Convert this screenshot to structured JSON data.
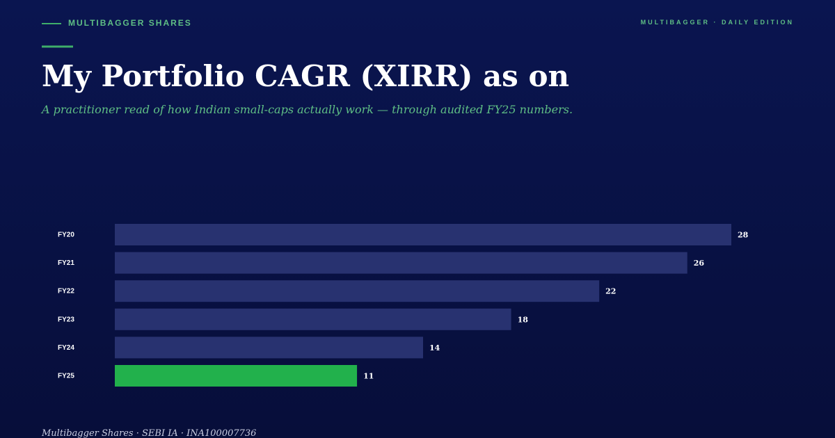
{
  "chart_data": {
    "type": "barh",
    "kicker": "MULTIBAGGER SHARES",
    "edition": "MULTIBAGGER · DAILY EDITION",
    "title": "My Portfolio CAGR (XIRR) as on",
    "subtitle": "A practitioner read of how Indian small-caps actually work — through audited FY25 numbers.",
    "footer": "Multibagger Shares · SEBI IA · INA100007736",
    "categories": [
      "FY20",
      "FY21",
      "FY22",
      "FY23",
      "FY24",
      "FY25"
    ],
    "values": [
      28,
      26,
      22,
      18,
      14,
      11
    ],
    "colors": [
      "#283270",
      "#283270",
      "#283270",
      "#283270",
      "#283270",
      "#22b14c"
    ]
  }
}
